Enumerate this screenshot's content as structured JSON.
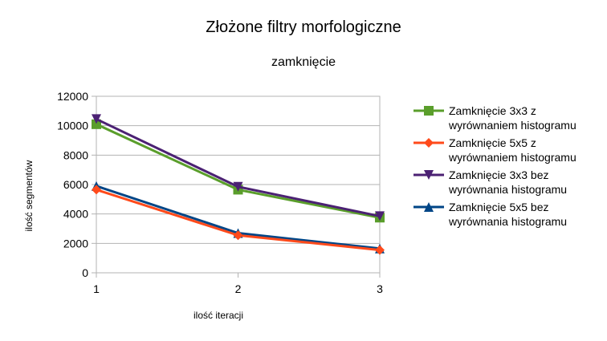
{
  "chart_data": {
    "type": "line",
    "title": "Złożone filtry morfologiczne",
    "subtitle": "zamknięcie",
    "xlabel": "ilość iteracji",
    "ylabel": "ilość segmentów",
    "x": [
      1,
      2,
      3
    ],
    "x_ticks": [
      "1",
      "2",
      "3"
    ],
    "ylim": [
      0,
      12000
    ],
    "y_ticks": [
      "0",
      "2000",
      "4000",
      "6000",
      "8000",
      "10000",
      "12000"
    ],
    "grid": "horizontal",
    "legend_position": "right",
    "series": [
      {
        "name": "Zamknięcie 3x3 z wyrównaniem histogramu",
        "name_lines": [
          "Zamknięcie 3x3 z",
          "wyrównaniem histogramu"
        ],
        "values": [
          10100,
          5650,
          3750
        ],
        "color": "#5a9e2b",
        "marker": "square"
      },
      {
        "name": "Zamknięcie 5x5 z wyrównaniem histogramu",
        "name_lines": [
          "Zamknięcie 5x5 z",
          "wyrównaniem histogramu"
        ],
        "values": [
          5650,
          2550,
          1550
        ],
        "color": "#ff4a1b",
        "marker": "diamond"
      },
      {
        "name": "Zamknięcie 3x3 bez wyrównania histogramu",
        "name_lines": [
          "Zamknięcie 3x3 bez",
          "wyrównania histogramu"
        ],
        "values": [
          10450,
          5850,
          3850
        ],
        "color": "#4b2173",
        "marker": "triangle-down"
      },
      {
        "name": "Zamknięcie 5x5 bez wyrównania histogramu",
        "name_lines": [
          "Zamknięcie 5x5 bez",
          "wyrównania histogramu"
        ],
        "values": [
          5900,
          2700,
          1650
        ],
        "color": "#004586",
        "marker": "triangle-up"
      }
    ]
  }
}
